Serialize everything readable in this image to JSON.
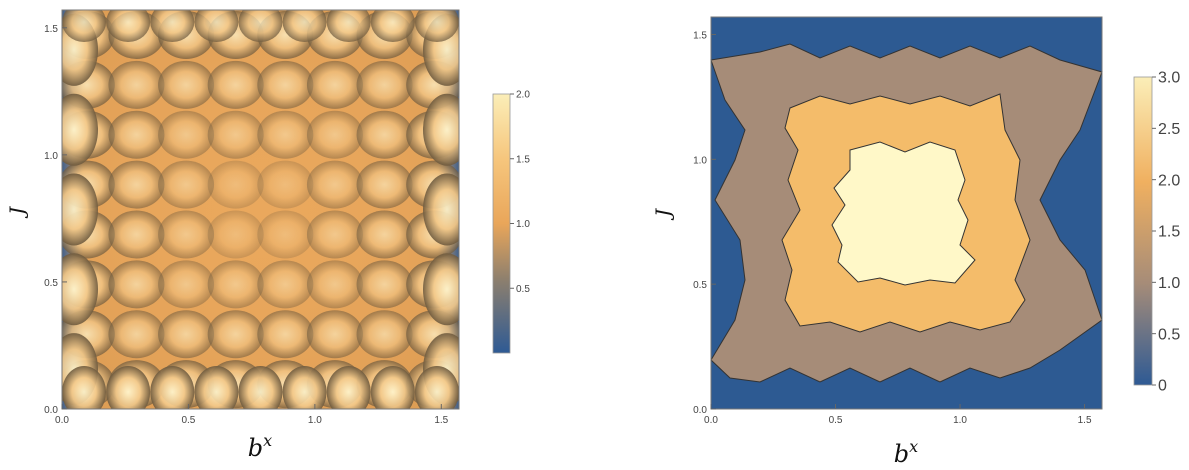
{
  "chart_data": [
    {
      "type": "heatmap",
      "title": "",
      "xlabel": "b^x",
      "ylabel": "J",
      "xlim": [
        0,
        1.57
      ],
      "ylim": [
        0,
        1.57
      ],
      "xticks": [
        "0.0",
        "0.5",
        "1.0",
        "1.5"
      ],
      "yticks": [
        "0.0",
        "0.5",
        "1.0",
        "1.5"
      ],
      "xtick_values": [
        0,
        0.5,
        1.0,
        1.5
      ],
      "ytick_values": [
        0,
        0.5,
        1.0,
        1.5
      ],
      "legend": "right",
      "colorbar": {
        "range": [
          0,
          2.0
        ],
        "ticks": [
          "0.5",
          "1.0",
          "1.5",
          "2.0"
        ],
        "tick_values": [
          0.5,
          1.0,
          1.5,
          2.0
        ]
      },
      "colors": {
        "low": "#2e5a94",
        "mid_low": "#8c7f6e",
        "mid": "#e9a65a",
        "high": "#fbeeb8",
        "dark": "#5f4e37"
      }
    },
    {
      "type": "heatmap",
      "title": "",
      "xlabel": "b^x",
      "ylabel": "J",
      "xlim": [
        0,
        1.57
      ],
      "ylim": [
        0,
        1.57
      ],
      "xticks": [
        "0.0",
        "0.5",
        "1.0",
        "1.5"
      ],
      "yticks": [
        "0.0",
        "0.5",
        "1.0",
        "1.5"
      ],
      "xtick_values": [
        0,
        0.5,
        1.0,
        1.5
      ],
      "ytick_values": [
        0,
        0.5,
        1.0,
        1.5
      ],
      "legend": "right",
      "levels": [
        0,
        1,
        2,
        3
      ],
      "level_colors": [
        "#2d5a92",
        "#a68c78",
        "#f4bc6a",
        "#fff8c8"
      ],
      "colorbar": {
        "range": [
          0,
          3.0
        ],
        "ticks": [
          "0",
          "0.5",
          "1.0",
          "1.5",
          "2.0",
          "2.5",
          "3.0"
        ],
        "tick_values": [
          0,
          0.5,
          1.0,
          1.5,
          2.0,
          2.5,
          3.0
        ]
      }
    }
  ]
}
